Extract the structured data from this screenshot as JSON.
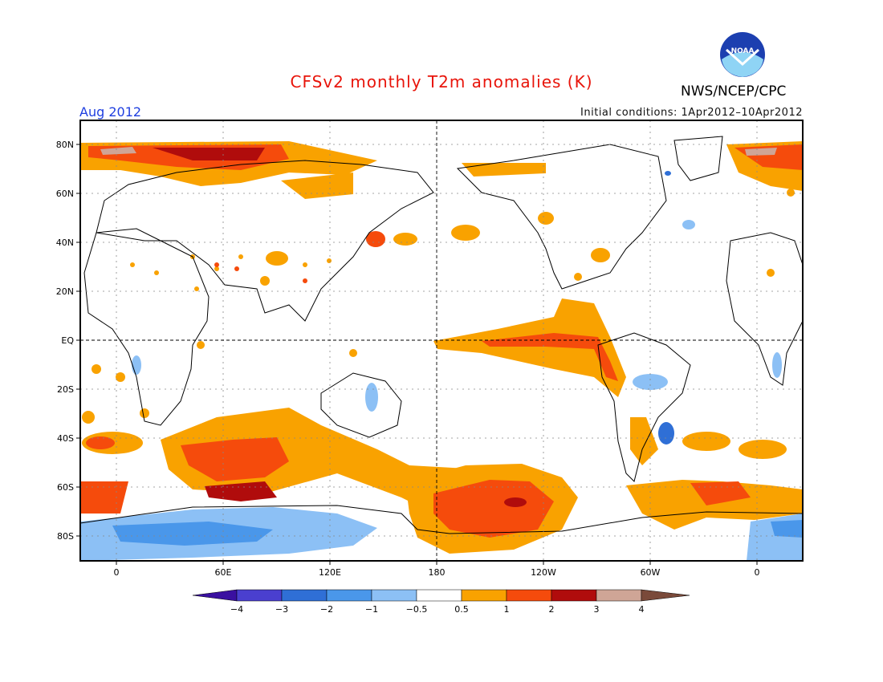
{
  "header": {
    "title": "CFSv2 monthly T2m anomalies (K)",
    "org": "NWS/NCEP/CPC",
    "logo_text": "NOAA",
    "period": "Aug 2012",
    "initial_conditions": "Initial conditions: 1Apr2012–10Apr2012"
  },
  "map": {
    "lat_labels": [
      "80N",
      "60N",
      "40N",
      "20N",
      "EQ",
      "20S",
      "40S",
      "60S",
      "80S"
    ],
    "lon_labels": [
      "0",
      "60E",
      "120E",
      "180",
      "120W",
      "60W",
      "0"
    ]
  },
  "colorbar": {
    "tick_labels": [
      "−4",
      "−3",
      "−2",
      "−1",
      "−0.5",
      "0.5",
      "1",
      "2",
      "3",
      "4"
    ],
    "colors": [
      "#3a10a0",
      "#4a3fcf",
      "#2f6fd6",
      "#4a97ea",
      "#8cc0f5",
      "#ffffff",
      "#f9a200",
      "#f54b0c",
      "#b00c0c",
      "#cfa596",
      "#7a4a3a"
    ]
  },
  "palette": {
    "title": "#e8140a",
    "period": "#1f3fe0",
    "warm1": "#f9a200",
    "warm2": "#f54b0c",
    "warm3": "#b00c0c",
    "warm4": "#cfa596",
    "cold1": "#8cc0f5",
    "cold2": "#4a97ea",
    "cold3": "#2f6fd6"
  }
}
